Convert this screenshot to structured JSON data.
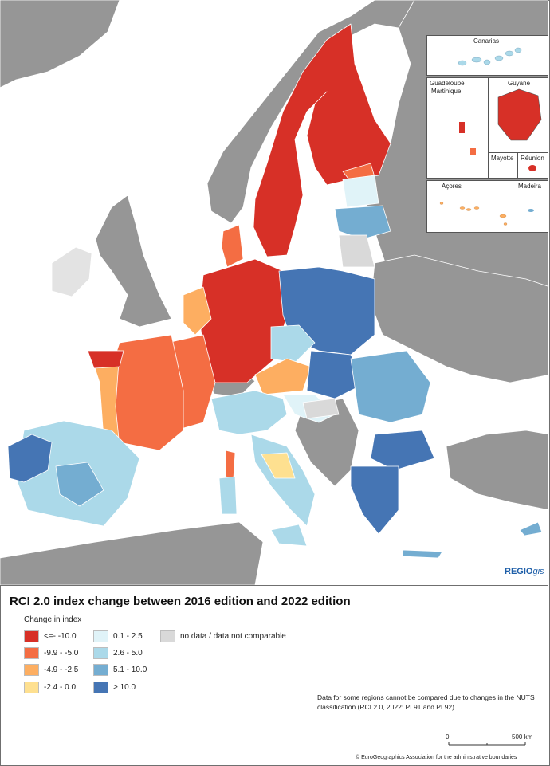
{
  "map": {
    "title": "RCI 2.0 index change between 2016 edition and 2022 edition",
    "credit": {
      "brand": "REGIO",
      "brand_suffix": "gis"
    },
    "insets": [
      "Canarias",
      "Guadeloupe",
      "Martinique",
      "Guyane",
      "Mayotte",
      "Réunion",
      "Açores",
      "Madeira"
    ]
  },
  "legend": {
    "title": "Change in index",
    "classes": [
      {
        "label": "<=- -10.0",
        "color": "#d73027"
      },
      {
        "label": "-9.9 - -5.0",
        "color": "#f46d43"
      },
      {
        "label": "-4.9 - -2.5",
        "color": "#fdae61"
      },
      {
        "label": "-2.4 - 0.0",
        "color": "#fee090"
      },
      {
        "label": "0.1 - 2.5",
        "color": "#e0f3f8"
      },
      {
        "label": "2.6 - 5.0",
        "color": "#abd9e9"
      },
      {
        "label": "5.1 - 10.0",
        "color": "#74add1"
      },
      {
        "label": "> 10.0",
        "color": "#4575b4"
      },
      {
        "label": "no data / data not comparable",
        "color": "#d9d9d9"
      }
    ]
  },
  "note": "Data for some regions cannot be compared due to changes in the NUTS classification (RCI 2.0, 2022: PL91 and PL92)",
  "scale": {
    "zero": "0",
    "end": "500 km"
  },
  "copyright": "© EuroGeographics Association for the administrative boundaries",
  "colors": {
    "sea": "#ffffff",
    "non_eu_land": "#969696",
    "border": "#ffffff"
  }
}
